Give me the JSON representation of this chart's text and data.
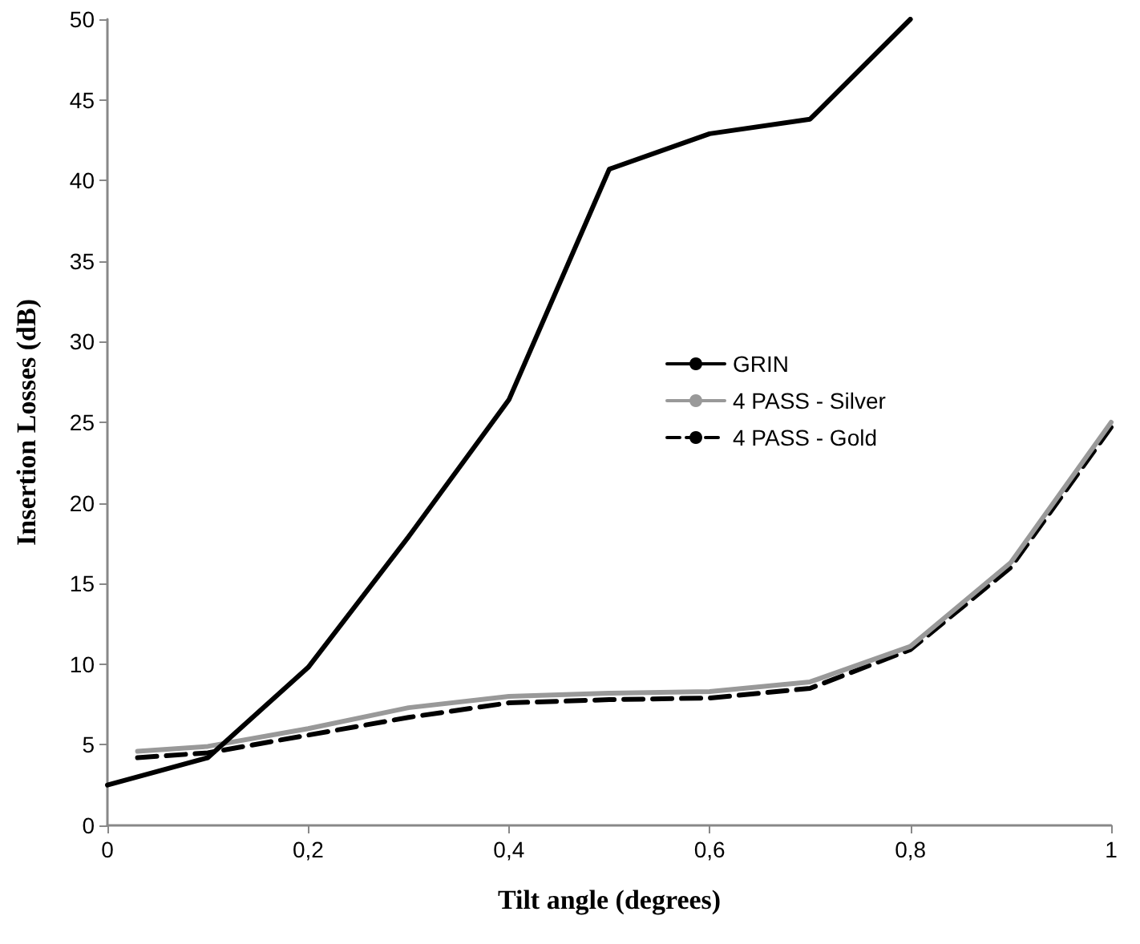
{
  "chart_data": {
    "type": "line",
    "xlabel": "Tilt angle (degrees)",
    "ylabel": "Insertion Losses (dB)",
    "xlim": [
      0,
      1
    ],
    "xticks": [
      0,
      {
        "value": 0.2,
        "label": "0,2"
      },
      {
        "value": 0.4,
        "label": "0,4"
      },
      {
        "value": 0.6,
        "label": "0,6"
      },
      {
        "value": 0.8,
        "label": "0,8"
      },
      1
    ],
    "ylim": [
      0,
      50
    ],
    "yticks": [
      0,
      5,
      10,
      15,
      20,
      25,
      30,
      35,
      40,
      45,
      50
    ],
    "grid": false,
    "legend": "right",
    "marker": "none",
    "series": [
      {
        "name": "GRIN",
        "color": "#000000",
        "line_style": "solid",
        "x": [
          0,
          0.1,
          0.2,
          0.3,
          0.4,
          0.5,
          0.6,
          0.7,
          0.8
        ],
        "values": [
          2.5,
          4.2,
          9.8,
          17.9,
          26.4,
          40.7,
          42.9,
          43.8,
          50
        ]
      },
      {
        "name": "4 PASS - Silver",
        "color": "#999999",
        "line_style": "solid",
        "x": [
          0.03,
          0.1,
          0.2,
          0.3,
          0.4,
          0.5,
          0.6,
          0.7,
          0.8,
          0.9,
          1
        ],
        "values": [
          4.6,
          4.9,
          6.0,
          7.3,
          8.0,
          8.2,
          8.3,
          8.9,
          11.1,
          16.3,
          25
        ]
      },
      {
        "name": "4 PASS - Gold",
        "color": "#000000",
        "line_style": "dashed",
        "x": [
          0.03,
          0.1,
          0.2,
          0.3,
          0.4,
          0.5,
          0.6,
          0.7,
          0.8,
          0.9,
          1
        ],
        "values": [
          4.2,
          4.5,
          5.6,
          6.7,
          7.6,
          7.8,
          7.9,
          8.5,
          10.9,
          16.0,
          24.7
        ]
      }
    ]
  }
}
